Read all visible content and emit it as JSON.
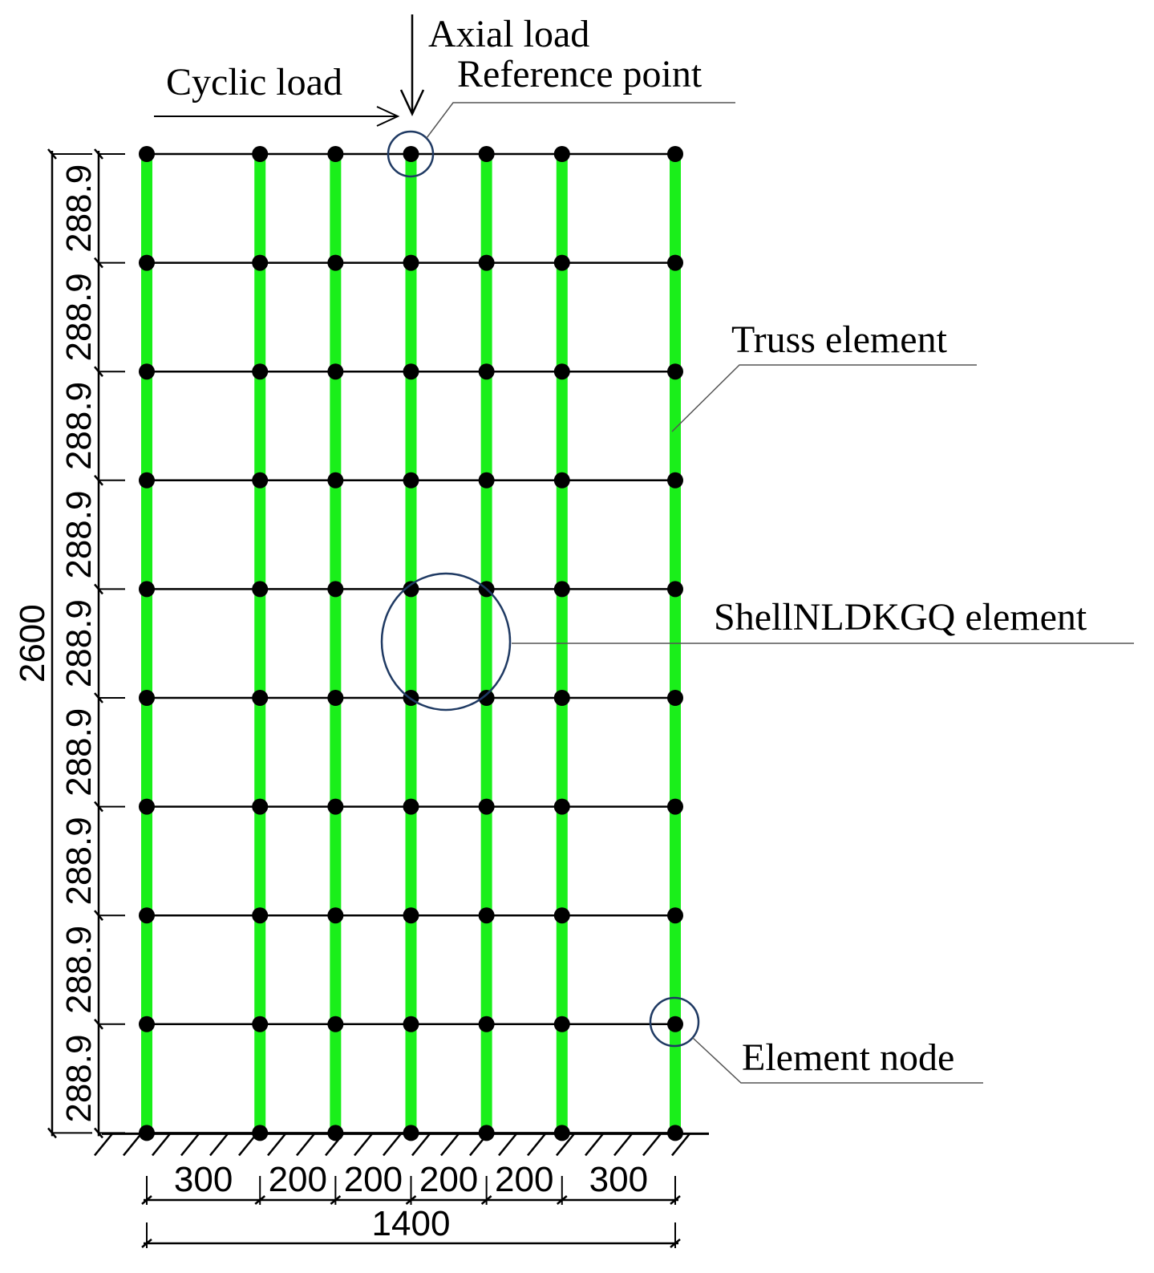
{
  "labels": {
    "axial_load": "Axial load",
    "cyclic_load": "Cyclic load",
    "reference_point": "Reference point",
    "truss_element": "Truss element",
    "shell_element": "ShellNLDKGQ element",
    "element_node": "Element node"
  },
  "dimensions": {
    "horizontal": [
      "300",
      "200",
      "200",
      "200",
      "200",
      "300"
    ],
    "total_width": "1400",
    "vertical": [
      "288.9",
      "288.9",
      "288.9",
      "288.9",
      "288.9",
      "288.9",
      "288.9",
      "288.9",
      "288.9"
    ],
    "total_height": "2600"
  },
  "mesh": {
    "column_offsets_mm": [
      0,
      300,
      500,
      700,
      900,
      1100,
      1400
    ],
    "row_count": 10
  },
  "colors": {
    "truss": "#1aef1a",
    "node": "#000000",
    "callout_circle": "#1f3a63",
    "line": "#000000"
  }
}
